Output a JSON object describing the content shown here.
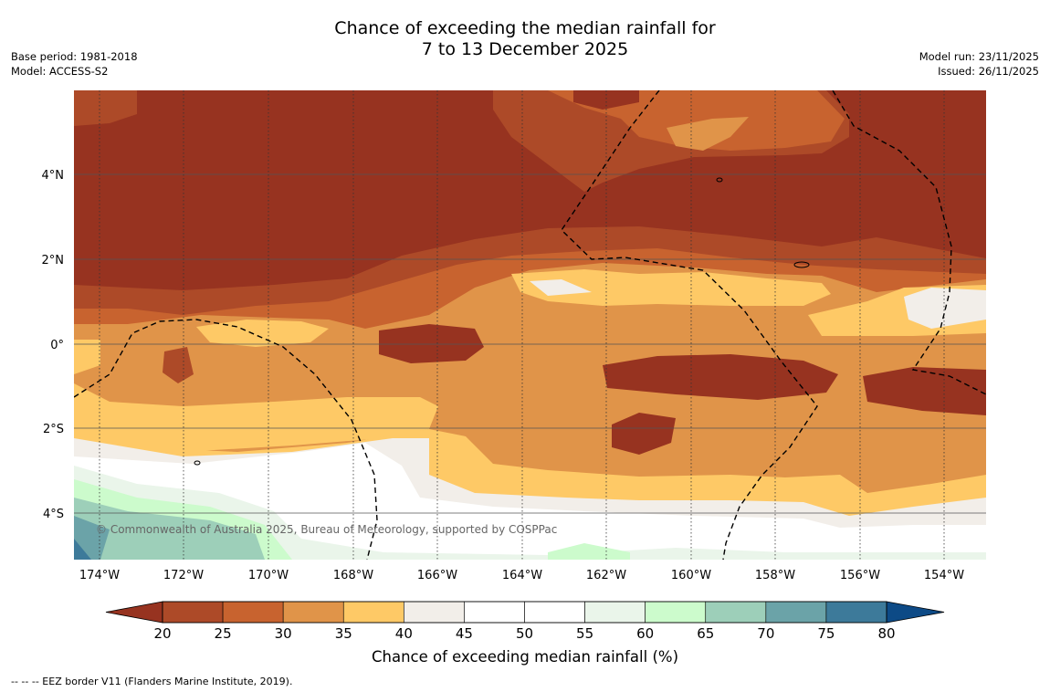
{
  "title": {
    "line1": "Chance of exceeding the median rainfall for",
    "line2": "7 to 13 December 2025"
  },
  "meta": {
    "base_period": "Base period: 1981-2018",
    "model": "Model: ACCESS-S2",
    "model_run": "Model run: 23/11/2025",
    "issued": "Issued: 26/11/2025"
  },
  "map": {
    "lat_labels": [
      "4°N",
      "2°N",
      "0°",
      "2°S",
      "4°S"
    ],
    "lon_labels": [
      "174°W",
      "172°W",
      "170°W",
      "168°W",
      "166°W",
      "164°W",
      "162°W",
      "160°W",
      "158°W",
      "156°W",
      "154°W"
    ],
    "copyright": "© Commonwealth of Australia 2025, Bureau of Meteorology, supported by COSPPac"
  },
  "colorbar": {
    "ticks": [
      "20",
      "25",
      "30",
      "35",
      "40",
      "45",
      "50",
      "55",
      "60",
      "65",
      "70",
      "75",
      "80"
    ],
    "colors": [
      "#ad4a28",
      "#c8632f",
      "#e09449",
      "#fec966",
      "#f2eee9",
      "#ffffff",
      "#ffffff",
      "#eaf5ea",
      "#ccfbcc",
      "#9dcfb9",
      "#6ba3a8",
      "#3d7a9a"
    ],
    "low_color": "#973320",
    "high_color": "#0d4a86",
    "title": "Chance of exceeding median rainfall (%)"
  },
  "footnote": "--  --  -- EEZ border V11 (Flanders Marine Institute, 2019)."
}
